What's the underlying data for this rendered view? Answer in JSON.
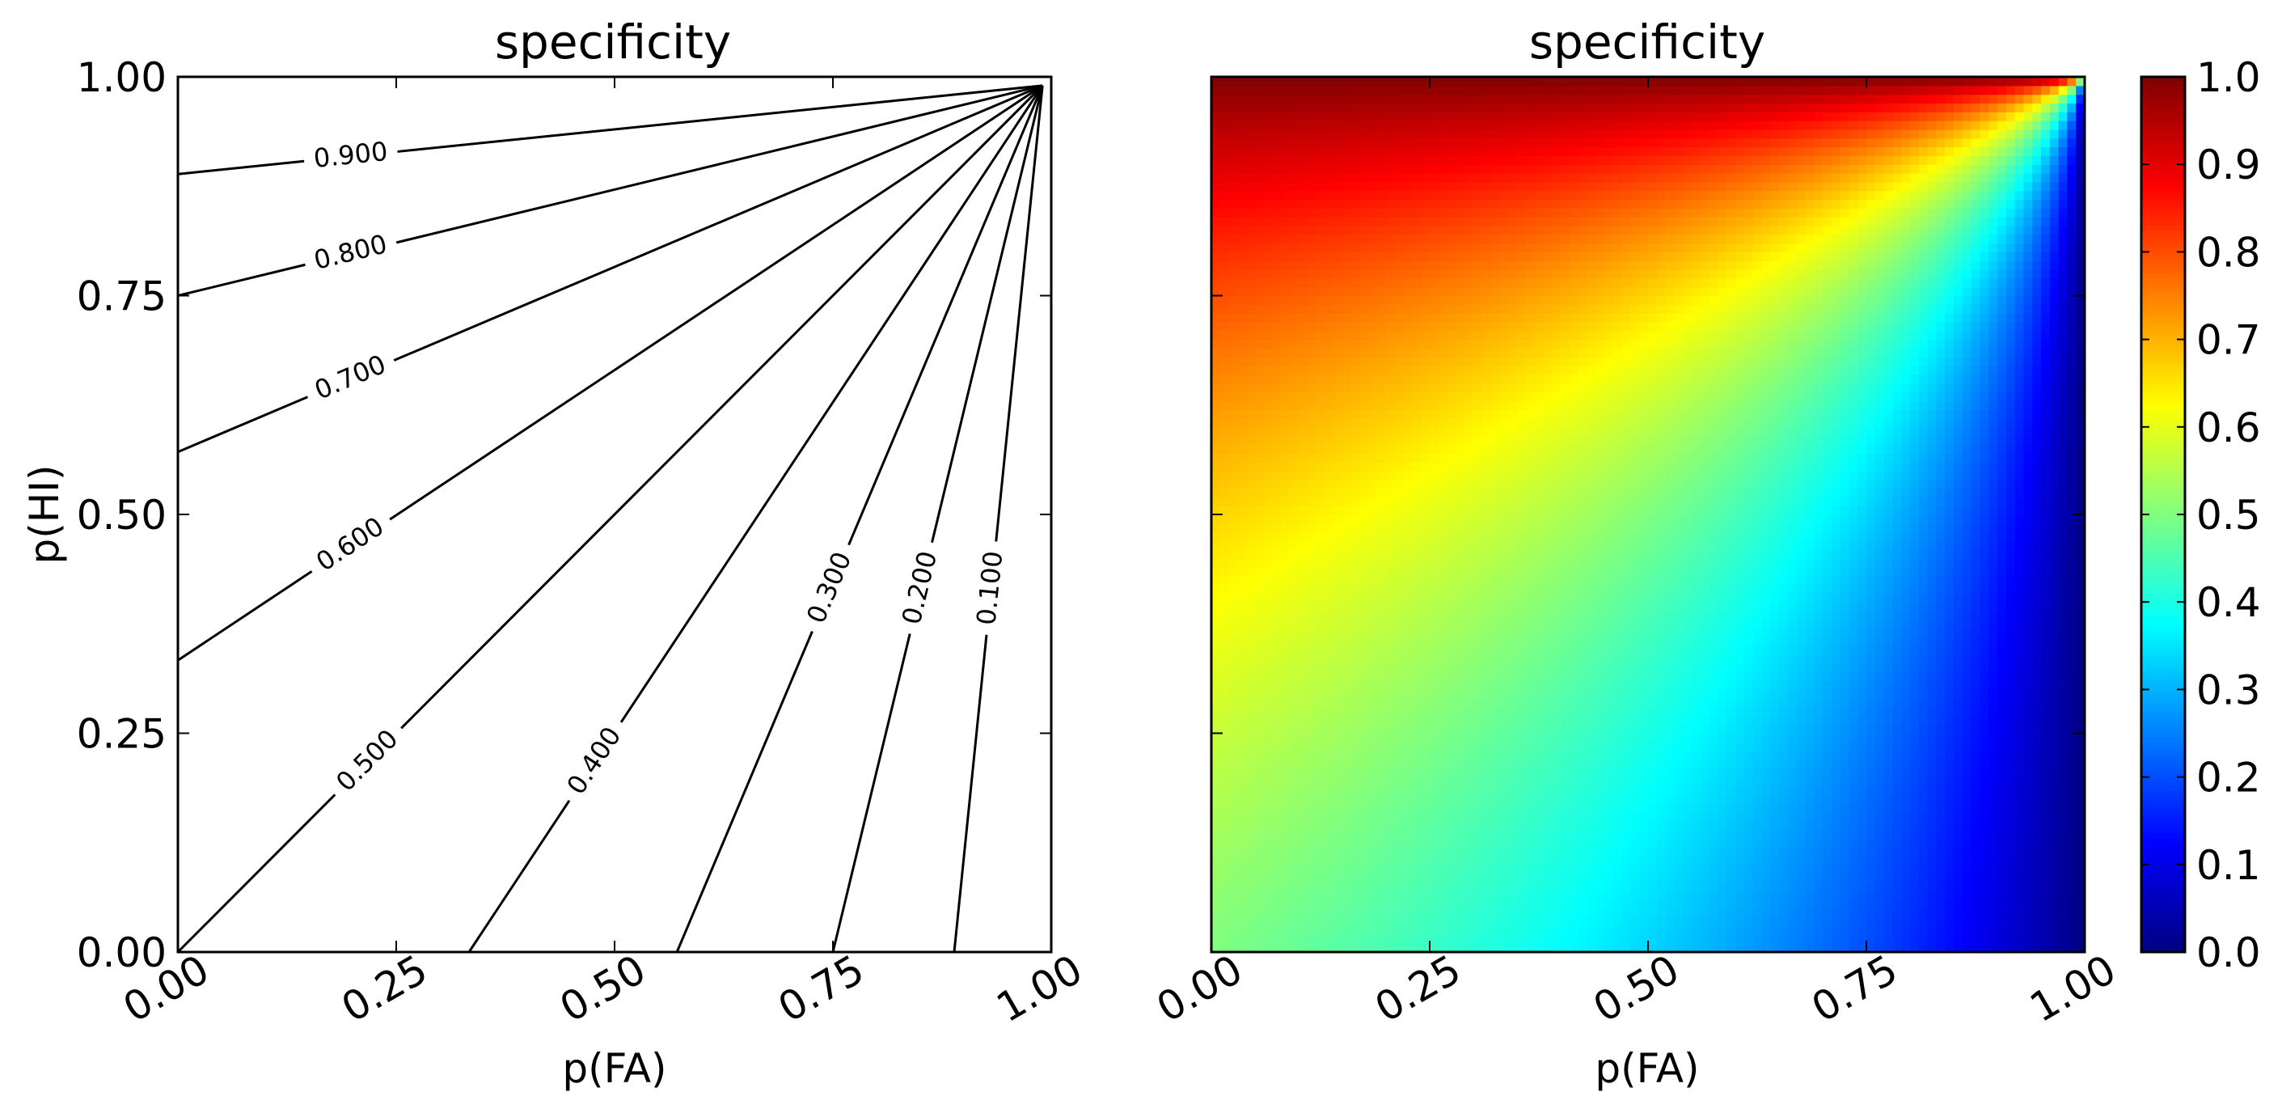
{
  "chart_data": [
    {
      "type": "contour",
      "title": "specificity",
      "xlabel": "p(FA)",
      "ylabel": "p(HI)",
      "xlim": [
        0,
        1
      ],
      "ylim": [
        0,
        1
      ],
      "xticks": [
        "0.00",
        "0.25",
        "0.50",
        "0.75",
        "1.00"
      ],
      "yticks": [
        "0.00",
        "0.25",
        "0.50",
        "0.75",
        "1.00"
      ],
      "grid": false,
      "function": "specificity = (1 - p(FA)) / ((1 - p(FA)) + (1 - p(HI)))",
      "contour_levels": [
        {
          "level": 0.1,
          "label": "0.100"
        },
        {
          "level": 0.2,
          "label": "0.200"
        },
        {
          "level": 0.3,
          "label": "0.300"
        },
        {
          "level": 0.4,
          "label": "0.400"
        },
        {
          "level": 0.5,
          "label": "0.500"
        },
        {
          "level": 0.6,
          "label": "0.600"
        },
        {
          "level": 0.7,
          "label": "0.700"
        },
        {
          "level": 0.8,
          "label": "0.800"
        },
        {
          "level": 0.9,
          "label": "0.900"
        }
      ]
    },
    {
      "type": "heatmap",
      "title": "specificity",
      "xlabel": "p(FA)",
      "xlim": [
        0,
        1
      ],
      "ylim": [
        0,
        1
      ],
      "xticks": [
        "0.00",
        "0.25",
        "0.50",
        "0.75",
        "1.00"
      ],
      "grid": false,
      "function": "specificity = (1 - p(FA)) / ((1 - p(FA)) + (1 - p(HI)))",
      "colormap": "jet",
      "colorbar": {
        "range": [
          0,
          1
        ],
        "ticks": [
          "0.0",
          "0.1",
          "0.2",
          "0.3",
          "0.4",
          "0.5",
          "0.6",
          "0.7",
          "0.8",
          "0.9",
          "1.0"
        ]
      }
    }
  ]
}
